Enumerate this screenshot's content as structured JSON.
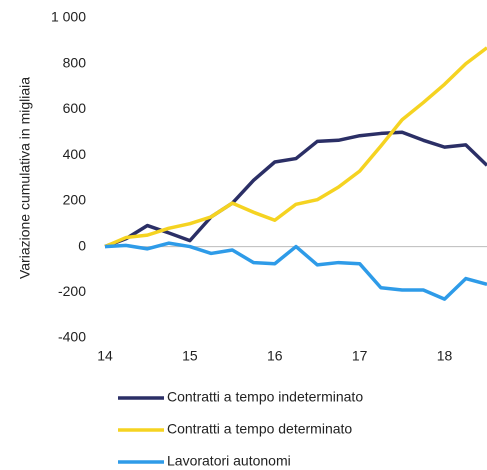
{
  "chart_data": {
    "type": "line",
    "y_label": "Variazione cumulativa  in migliaia",
    "x": [
      14,
      14.25,
      14.5,
      14.75,
      15,
      15.25,
      15.5,
      15.75,
      16,
      16.25,
      16.5,
      16.75,
      17,
      17.25,
      17.5,
      17.75,
      18,
      18.25,
      18.5
    ],
    "series": [
      {
        "name": "Contratti a tempo indeterminato",
        "color": "#2b2f66",
        "values": [
          0,
          35,
          92,
          60,
          26,
          130,
          190,
          290,
          370,
          385,
          460,
          465,
          485,
          495,
          500,
          465,
          435,
          445,
          355
        ]
      },
      {
        "name": "Contratti a tempo determinato",
        "color": "#f5d321",
        "values": [
          0,
          40,
          50,
          80,
          100,
          130,
          190,
          150,
          115,
          185,
          205,
          260,
          330,
          440,
          555,
          630,
          710,
          800,
          870
        ]
      },
      {
        "name": "Lavoratori autonomi",
        "color": "#2e9be8",
        "values": [
          0,
          5,
          -10,
          15,
          0,
          -30,
          -15,
          -70,
          -75,
          0,
          -80,
          -70,
          -75,
          -180,
          -190,
          -190,
          -230,
          -140,
          -165
        ]
      }
    ],
    "xlim": [
      14,
      18.5
    ],
    "xticks": [
      14,
      15,
      16,
      17,
      18
    ],
    "ylim": [
      -400,
      1000
    ],
    "yticks": [
      -400,
      -200,
      0,
      200,
      400,
      600,
      800,
      {
        "value": 1000,
        "label": "1 000"
      }
    ],
    "legend": "bottom"
  }
}
